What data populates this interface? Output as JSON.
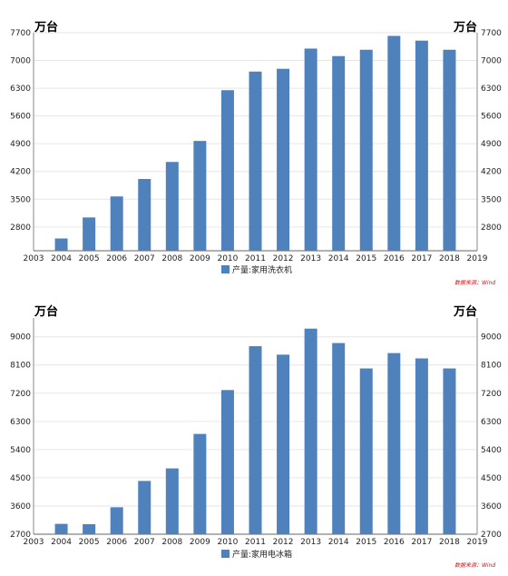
{
  "chart_data": [
    {
      "type": "bar",
      "unit_left": "万台",
      "unit_right": "万台",
      "categories": [
        "2004",
        "2005",
        "2006",
        "2007",
        "2008",
        "2009",
        "2010",
        "2011",
        "2012",
        "2013",
        "2014",
        "2015",
        "2016",
        "2017",
        "2018"
      ],
      "x_ticks": [
        "2003",
        "2004",
        "2005",
        "2006",
        "2007",
        "2008",
        "2009",
        "2010",
        "2011",
        "2012",
        "2013",
        "2014",
        "2015",
        "2016",
        "2017",
        "2018",
        "2019"
      ],
      "series": [
        {
          "name": "产量:家用洗衣机",
          "values": [
            2510,
            3040,
            3570,
            4010,
            4440,
            4970,
            6250,
            6720,
            6790,
            7300,
            7110,
            7270,
            7620,
            7500,
            7270
          ]
        }
      ],
      "ylim": [
        2200,
        7700
      ],
      "yticks": [
        2800,
        3500,
        4200,
        4900,
        5600,
        6300,
        7000,
        7700
      ],
      "color": "#4f81bd",
      "source": "数据来源：Wind",
      "grid": true,
      "legend_position": "bottom"
    },
    {
      "type": "bar",
      "unit_left": "万台",
      "unit_right": "万台",
      "categories": [
        "2004",
        "2005",
        "2006",
        "2007",
        "2008",
        "2009",
        "2010",
        "2011",
        "2012",
        "2013",
        "2014",
        "2015",
        "2016",
        "2017",
        "2018"
      ],
      "x_ticks": [
        "2003",
        "2004",
        "2005",
        "2006",
        "2007",
        "2008",
        "2009",
        "2010",
        "2011",
        "2012",
        "2013",
        "2014",
        "2015",
        "2016",
        "2017",
        "2018",
        "2019"
      ],
      "series": [
        {
          "name": "产量:家用电冰箱",
          "values": [
            3030,
            3020,
            3560,
            4400,
            4800,
            5900,
            7300,
            8700,
            8430,
            9260,
            8800,
            7990,
            8480,
            8310,
            7990
          ]
        }
      ],
      "ylim": [
        2700,
        9600
      ],
      "yticks": [
        2700,
        3600,
        4500,
        5400,
        6300,
        7200,
        8100,
        9000
      ],
      "color": "#4f81bd",
      "source": "数据来源：Wind",
      "grid": true,
      "legend_position": "bottom"
    }
  ]
}
